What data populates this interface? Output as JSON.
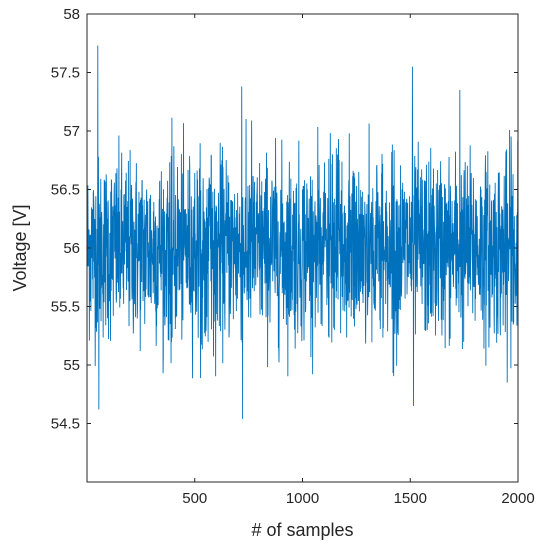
{
  "chart_data": {
    "type": "line",
    "title": "",
    "xlabel": "# of samples",
    "ylabel": "Voltage [V]",
    "xlim": [
      0,
      2000
    ],
    "ylim": [
      54,
      58
    ],
    "x_ticks": [
      500,
      1000,
      1500,
      2000
    ],
    "x_tick_labels": [
      "500",
      "1000",
      "1500",
      "2000"
    ],
    "y_ticks": [
      54.5,
      55,
      55.5,
      56,
      56.5,
      57,
      57.5,
      58
    ],
    "y_tick_labels": [
      "54.5",
      "55",
      "55.5",
      "56",
      "56.5",
      "57",
      "57.5",
      "58"
    ],
    "grid": false,
    "legend": "none",
    "series": [
      {
        "color": "#0072bd",
        "num_samples": 2000,
        "x_range": [
          1,
          2000
        ],
        "typical_band": [
          55.0,
          57.0
        ],
        "mean": 56.0,
        "notable_points": [
          {
            "x": 50,
            "y": 57.73
          },
          {
            "x": 55,
            "y": 54.62
          },
          {
            "x": 718,
            "y": 57.38
          },
          {
            "x": 722,
            "y": 54.54
          },
          {
            "x": 1510,
            "y": 57.55
          },
          {
            "x": 1515,
            "y": 54.65
          },
          {
            "x": 1730,
            "y": 57.35
          },
          {
            "x": 1950,
            "y": 54.85
          }
        ]
      }
    ]
  },
  "colors": {
    "series": "#0072bd",
    "axis": "#262626",
    "background": "#ffffff"
  }
}
